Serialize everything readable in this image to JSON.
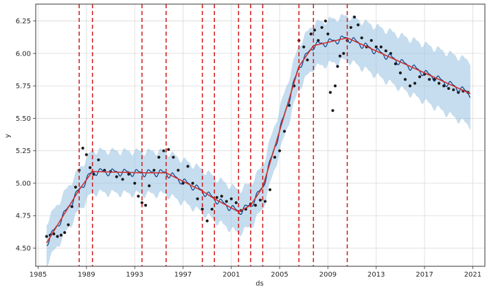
{
  "chart_data": {
    "type": "line",
    "title": "",
    "xlabel": "ds",
    "ylabel": "y",
    "xlim": [
      1984.8,
      2022.0
    ],
    "ylim": [
      4.36,
      6.38
    ],
    "grid": true,
    "x_ticks": [
      1985,
      1989,
      1993,
      1997,
      2001,
      2005,
      2009,
      2013,
      2017,
      2021
    ],
    "x_tick_labels": [
      "1985",
      "1989",
      "1993",
      "1997",
      "2001",
      "2005",
      "2009",
      "2013",
      "2017",
      "2021"
    ],
    "y_ticks": [
      4.5,
      4.75,
      5.0,
      5.25,
      5.5,
      5.75,
      6.0,
      6.25
    ],
    "y_tick_labels": [
      "4.50",
      "4.75",
      "5.00",
      "5.25",
      "5.50",
      "5.75",
      "6.00",
      "6.25"
    ],
    "colors": {
      "observed": "#1a1a1a",
      "forecast": "#0b3e8a",
      "trend": "#d0312d",
      "interval": "#9fc6e2",
      "changepoint": "#d01414",
      "grid": "#d9d9d9",
      "axis": "#333333"
    },
    "changepoints": [
      1988.4,
      1989.5,
      1993.6,
      1995.6,
      1998.6,
      1999.6,
      2001.6,
      2002.6,
      2003.6,
      2006.6,
      2007.8,
      2010.6
    ],
    "trend": {
      "x": [
        1985.7,
        1988.4,
        1989.5,
        1993.6,
        1995.6,
        1998.6,
        1999.6,
        2001.6,
        2002.6,
        2003.6,
        2006.6,
        2007.8,
        2010.6,
        2020.8
      ],
      "y": [
        4.54,
        4.95,
        5.09,
        5.08,
        5.08,
        4.94,
        4.88,
        4.78,
        4.83,
        4.97,
        5.9,
        6.06,
        6.12,
        5.69
      ]
    },
    "interval_width": {
      "x": [
        1985.7,
        2010.6,
        2020.8
      ],
      "y": [
        0.16,
        0.17,
        0.25
      ]
    },
    "series": [
      {
        "kind": "observed",
        "x": [
          1985.7,
          1986.0,
          1986.3,
          1986.6,
          1986.9,
          1987.2,
          1987.5,
          1987.8,
          1988.1,
          1988.4,
          1988.7,
          1989.0,
          1989.3,
          1989.6,
          1990.0,
          1990.5,
          1991.0,
          1991.5,
          1992.0,
          1992.5,
          1993.0,
          1993.3,
          1993.6,
          1993.9,
          1994.2,
          1994.6,
          1995.0,
          1995.4,
          1995.8,
          1996.2,
          1996.6,
          1997.0,
          1997.4,
          1997.8,
          1998.2,
          1998.6,
          1999.0,
          1999.4,
          1999.8,
          2000.2,
          2000.6,
          2001.0,
          2001.4,
          2001.8,
          2002.2,
          2002.6,
          2003.0,
          2003.4,
          2003.8,
          2004.2,
          2004.6,
          2005.0,
          2005.4,
          2005.8,
          2006.2,
          2006.6,
          2007.0,
          2007.3,
          2007.6,
          2007.9,
          2008.2,
          2008.5,
          2008.8,
          2009.0,
          2009.2,
          2009.4,
          2009.6,
          2009.8,
          2010.0,
          2010.3,
          2010.6,
          2010.9,
          2011.2,
          2011.5,
          2011.8,
          2012.2,
          2012.6,
          2013.0,
          2013.4,
          2013.8,
          2014.2,
          2014.6,
          2015.0,
          2015.4,
          2015.8,
          2016.2,
          2016.6,
          2017.0,
          2017.4,
          2017.8,
          2018.2,
          2018.6,
          2019.0,
          2019.4,
          2019.8,
          2020.2,
          2020.6
        ],
        "y": [
          4.59,
          4.6,
          4.61,
          4.59,
          4.6,
          4.62,
          4.68,
          4.82,
          4.97,
          5.1,
          5.27,
          5.22,
          5.12,
          5.07,
          5.18,
          5.1,
          5.09,
          5.05,
          5.03,
          5.07,
          5.0,
          4.9,
          4.85,
          4.83,
          4.98,
          5.1,
          5.2,
          5.25,
          5.26,
          5.2,
          5.1,
          5.0,
          5.13,
          5.0,
          4.88,
          4.8,
          4.71,
          4.8,
          4.89,
          4.9,
          4.86,
          4.88,
          4.85,
          4.79,
          4.8,
          4.84,
          4.83,
          4.87,
          4.86,
          4.95,
          5.2,
          5.25,
          5.4,
          5.6,
          5.75,
          6.1,
          6.05,
          5.95,
          6.15,
          6.18,
          6.1,
          6.2,
          6.25,
          6.15,
          5.7,
          5.56,
          5.75,
          5.9,
          5.98,
          6.0,
          6.1,
          6.2,
          6.28,
          6.22,
          6.12,
          6.05,
          6.1,
          6.05,
          6.05,
          6.02,
          6.0,
          5.92,
          5.85,
          5.8,
          5.75,
          5.77,
          5.82,
          5.84,
          5.8,
          5.8,
          5.77,
          5.75,
          5.73,
          5.72,
          5.7,
          5.71,
          5.7
        ]
      }
    ]
  }
}
